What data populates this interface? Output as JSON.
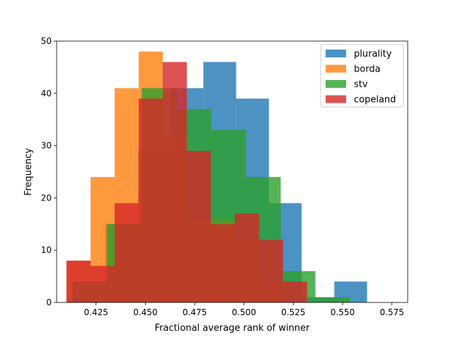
{
  "chart_data": {
    "type": "histogram",
    "xlabel": "Fractional average rank of winner",
    "ylabel": "Frequency",
    "xlim": [
      0.405,
      0.583
    ],
    "ylim": [
      0,
      50
    ],
    "xticks": [
      0.425,
      0.45,
      0.475,
      0.5,
      0.525,
      0.55,
      0.575
    ],
    "xtick_labels": [
      "0.425",
      "0.450",
      "0.475",
      "0.500",
      "0.525",
      "0.550",
      "0.575"
    ],
    "yticks": [
      0,
      10,
      20,
      30,
      40,
      50
    ],
    "ytick_labels": [
      "0",
      "10",
      "20",
      "30",
      "40",
      "50"
    ],
    "legend_position": "top-right",
    "series": [
      {
        "name": "plurality",
        "color": "#1f77b4",
        "bin_edges": [
          0.413,
          0.4296,
          0.4462,
          0.4628,
          0.4794,
          0.496,
          0.5126,
          0.5292,
          0.5458,
          0.5624,
          0.579
        ],
        "counts": [
          4,
          15,
          29,
          41,
          46,
          39,
          19,
          1,
          4,
          0
        ]
      },
      {
        "name": "borda",
        "color": "#ff7f0e",
        "bin_edges": [
          0.41,
          0.4222,
          0.4344,
          0.4466,
          0.4588,
          0.471,
          0.4832,
          0.4954,
          0.5076,
          0.5198,
          0.532
        ],
        "counts": [
          8,
          24,
          41,
          48,
          32,
          16,
          16,
          12,
          4,
          0
        ]
      },
      {
        "name": "stv",
        "color": "#2ca02c",
        "bin_edges": [
          0.413,
          0.4306,
          0.4482,
          0.4658,
          0.4834,
          0.501,
          0.5186,
          0.5362,
          0.5538,
          0.5714,
          0.589
        ],
        "counts": [
          4,
          15,
          41,
          37,
          33,
          24,
          6,
          1,
          0,
          0
        ]
      },
      {
        "name": "copeland",
        "color": "#d62728",
        "bin_edges": [
          0.41,
          0.4222,
          0.4344,
          0.4466,
          0.4588,
          0.471,
          0.4832,
          0.4954,
          0.5076,
          0.5198,
          0.532
        ],
        "counts": [
          8,
          7,
          19,
          39,
          46,
          29,
          15,
          17,
          12,
          4
        ]
      }
    ]
  }
}
